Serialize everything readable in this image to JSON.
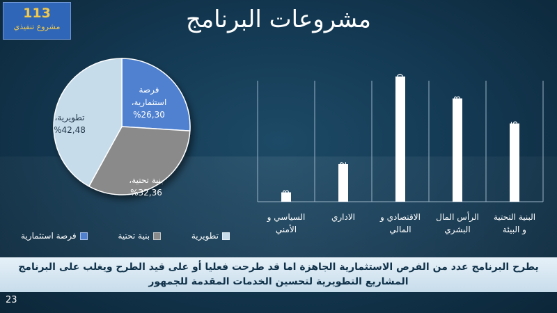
{
  "slide": {
    "title": "مشروعات البرنامج",
    "kpi": {
      "value": "113",
      "label": "مشروع تنفيذي"
    },
    "note": "يطرح البرنامج عدد من الفرص الاستثمارية الجاهزة اما قد طرحت فعليا أو على قيد الطرح ويغلب على البرنامج المشاريع التطويرية لتحسين الخدمات المقدمة للجمهور",
    "page_number": "23"
  },
  "colors": {
    "pie": [
      "#4f81d0",
      "#8a8a8a",
      "#c6dceb"
    ],
    "bar": "#ffffff",
    "axis": "#9bb4c6",
    "kpi_text": "#f2c94c"
  },
  "chart_data": [
    {
      "type": "pie",
      "slices": [
        {
          "name": "فرصة استثمارية",
          "value": 26.3,
          "label": "فرصة\nاستثمارية،\n%26,30"
        },
        {
          "name": "بنية تحتية",
          "value": 32.36,
          "label": "بنية تحتية،\n%32,36"
        },
        {
          "name": "تطويرية",
          "value": 42.48,
          "label": "تطويرية،\n%42,48"
        }
      ],
      "legend": [
        "تطويرية",
        "بنية تحتية",
        "فرصة استثمارية"
      ],
      "legend_position": "bottom"
    },
    {
      "type": "bar",
      "categories": [
        "البنية التحتية و البيئة",
        "الرأس المال البشري",
        "الاقتصادي و المالي",
        "الاداري",
        "السياسي و الأمني"
      ],
      "values": [
        25,
        33,
        40,
        12,
        3
      ],
      "category_order": "right-to-left",
      "ylim": [
        0,
        40
      ],
      "grid": false,
      "data_labels": true
    }
  ]
}
